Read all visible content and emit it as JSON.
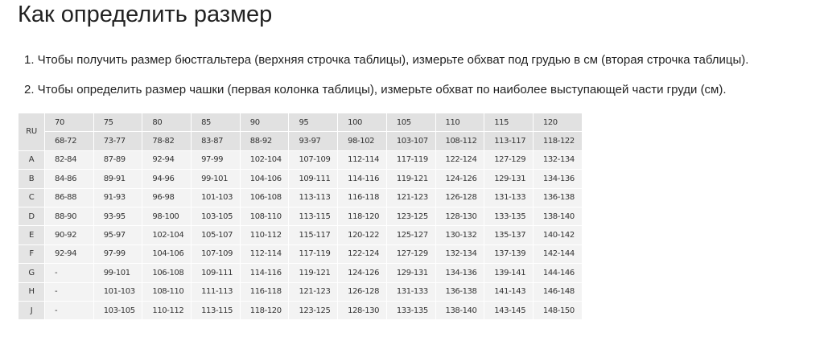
{
  "title": "Как определить размер",
  "instructions": [
    "1. Чтобы получить размер бюстгальтера (верхняя строчка таблицы), измерьте обхват под грудью в см (вторая строчка таблицы).",
    "2. Чтобы определить размер чашки (первая колонка таблицы), измерьте обхват по наиболее выступающей части груди (см)."
  ],
  "table": {
    "corner": "RU",
    "sizes": [
      "70",
      "75",
      "80",
      "85",
      "90",
      "95",
      "100",
      "105",
      "110",
      "115",
      "120"
    ],
    "underbust": [
      "68-72",
      "73-77",
      "78-82",
      "83-87",
      "88-92",
      "93-97",
      "98-102",
      "103-107",
      "108-112",
      "113-117",
      "118-122"
    ],
    "rows": [
      {
        "cup": "A",
        "values": [
          "82-84",
          "87-89",
          "92-94",
          "97-99",
          "102-104",
          "107-109",
          "112-114",
          "117-119",
          "122-124",
          "127-129",
          "132-134"
        ]
      },
      {
        "cup": "B",
        "values": [
          "84-86",
          "89-91",
          "94-96",
          "99-101",
          "104-106",
          "109-111",
          "114-116",
          "119-121",
          "124-126",
          "129-131",
          "134-136"
        ]
      },
      {
        "cup": "C",
        "values": [
          "86-88",
          "91-93",
          "96-98",
          "101-103",
          "106-108",
          "113-113",
          "116-118",
          "121-123",
          "126-128",
          "131-133",
          "136-138"
        ]
      },
      {
        "cup": "D",
        "values": [
          "88-90",
          "93-95",
          "98-100",
          "103-105",
          "108-110",
          "113-115",
          "118-120",
          "123-125",
          "128-130",
          "133-135",
          "138-140"
        ]
      },
      {
        "cup": "E",
        "values": [
          "90-92",
          "95-97",
          "102-104",
          "105-107",
          "110-112",
          "115-117",
          "120-122",
          "125-127",
          "130-132",
          "135-137",
          "140-142"
        ]
      },
      {
        "cup": "F",
        "values": [
          "92-94",
          "97-99",
          "104-106",
          "107-109",
          "112-114",
          "117-119",
          "122-124",
          "127-129",
          "132-134",
          "137-139",
          "142-144"
        ]
      },
      {
        "cup": "G",
        "values": [
          "-",
          "99-101",
          "106-108",
          "109-111",
          "114-116",
          "119-121",
          "124-126",
          "129-131",
          "134-136",
          "139-141",
          "144-146"
        ]
      },
      {
        "cup": "H",
        "values": [
          "-",
          "101-103",
          "108-110",
          "111-113",
          "116-118",
          "121-123",
          "126-128",
          "131-133",
          "136-138",
          "141-143",
          "146-148"
        ]
      },
      {
        "cup": "J",
        "values": [
          "-",
          "103-105",
          "110-112",
          "113-115",
          "118-120",
          "123-125",
          "128-130",
          "133-135",
          "138-140",
          "143-145",
          "148-150"
        ]
      }
    ]
  }
}
